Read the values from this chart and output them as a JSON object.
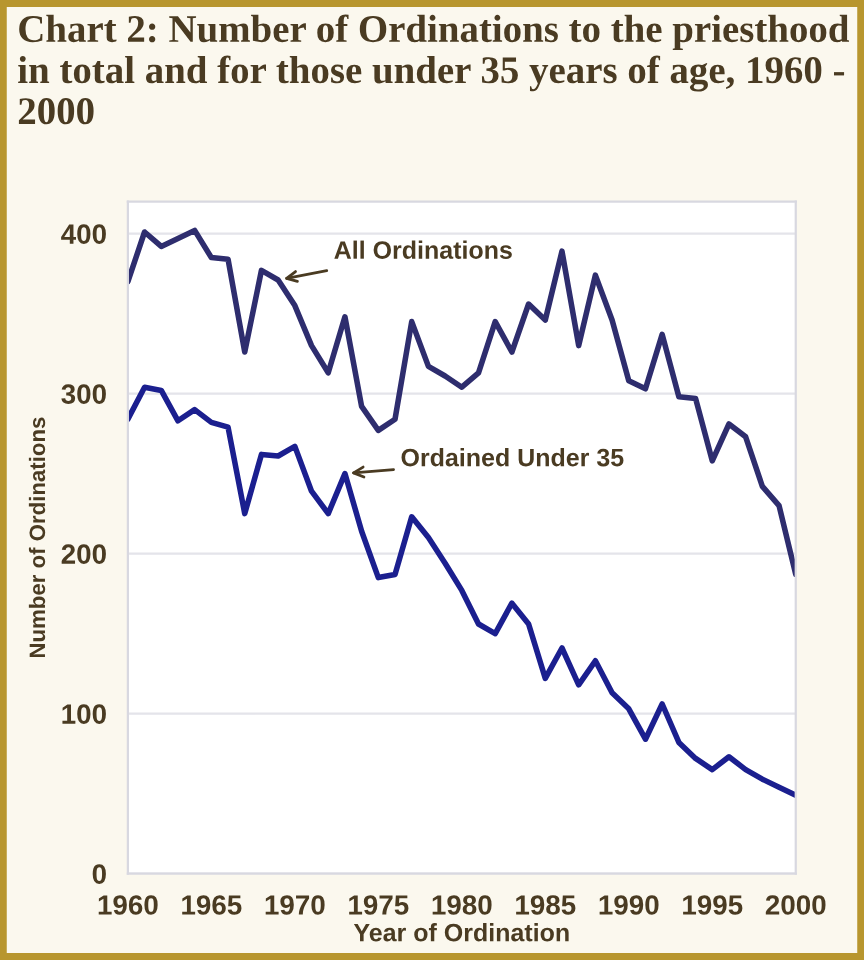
{
  "chart_data": {
    "type": "line",
    "title": "Chart 2: Number of Ordinations to the priesthood in total and for those under 35 years of age, 1960 - 2000",
    "xlabel": "Year of Ordination",
    "ylabel": "Number of Ordinations",
    "x": [
      1960,
      1961,
      1962,
      1963,
      1964,
      1965,
      1966,
      1967,
      1968,
      1969,
      1970,
      1971,
      1972,
      1973,
      1974,
      1975,
      1976,
      1977,
      1978,
      1979,
      1980,
      1981,
      1982,
      1983,
      1984,
      1985,
      1986,
      1987,
      1988,
      1989,
      1990,
      1991,
      1992,
      1993,
      1994,
      1995,
      1996,
      1997,
      1998,
      1999,
      2000
    ],
    "series": [
      {
        "color": "#2e2d6e",
        "values": [
          370,
          401,
          392,
          397,
          402,
          385,
          384,
          326,
          377,
          371,
          355,
          330,
          313,
          348,
          292,
          277,
          284,
          345,
          317,
          311,
          304,
          313,
          345,
          326,
          356,
          346,
          389,
          330,
          374,
          346,
          308,
          303,
          337,
          298,
          297,
          258,
          281,
          273,
          242,
          230,
          187
        ]
      },
      {
        "color": "#1b1f8f",
        "values": [
          284,
          304,
          302,
          283,
          290,
          282,
          279,
          225,
          262,
          261,
          267,
          239,
          225,
          250,
          214,
          185,
          187,
          223,
          210,
          194,
          177,
          156,
          150,
          169,
          156,
          122,
          141,
          118,
          133,
          113,
          103,
          84,
          106,
          82,
          72,
          65,
          73,
          65,
          59,
          54,
          49
        ]
      }
    ],
    "annotations": [
      {
        "text": "All Ordinations",
        "x": 1969,
        "y": 371
      },
      {
        "text": "Ordained Under 35",
        "x": 1973,
        "y": 250
      }
    ],
    "xlim": [
      1960,
      2000
    ],
    "ylim": [
      0,
      420
    ],
    "xticks": [
      1960,
      1965,
      1970,
      1975,
      1980,
      1985,
      1990,
      1995,
      2000
    ],
    "yticks": [
      0,
      100,
      200,
      300,
      400
    ],
    "grid": "y",
    "legend": false,
    "line_style": "solid",
    "marker": "none"
  }
}
